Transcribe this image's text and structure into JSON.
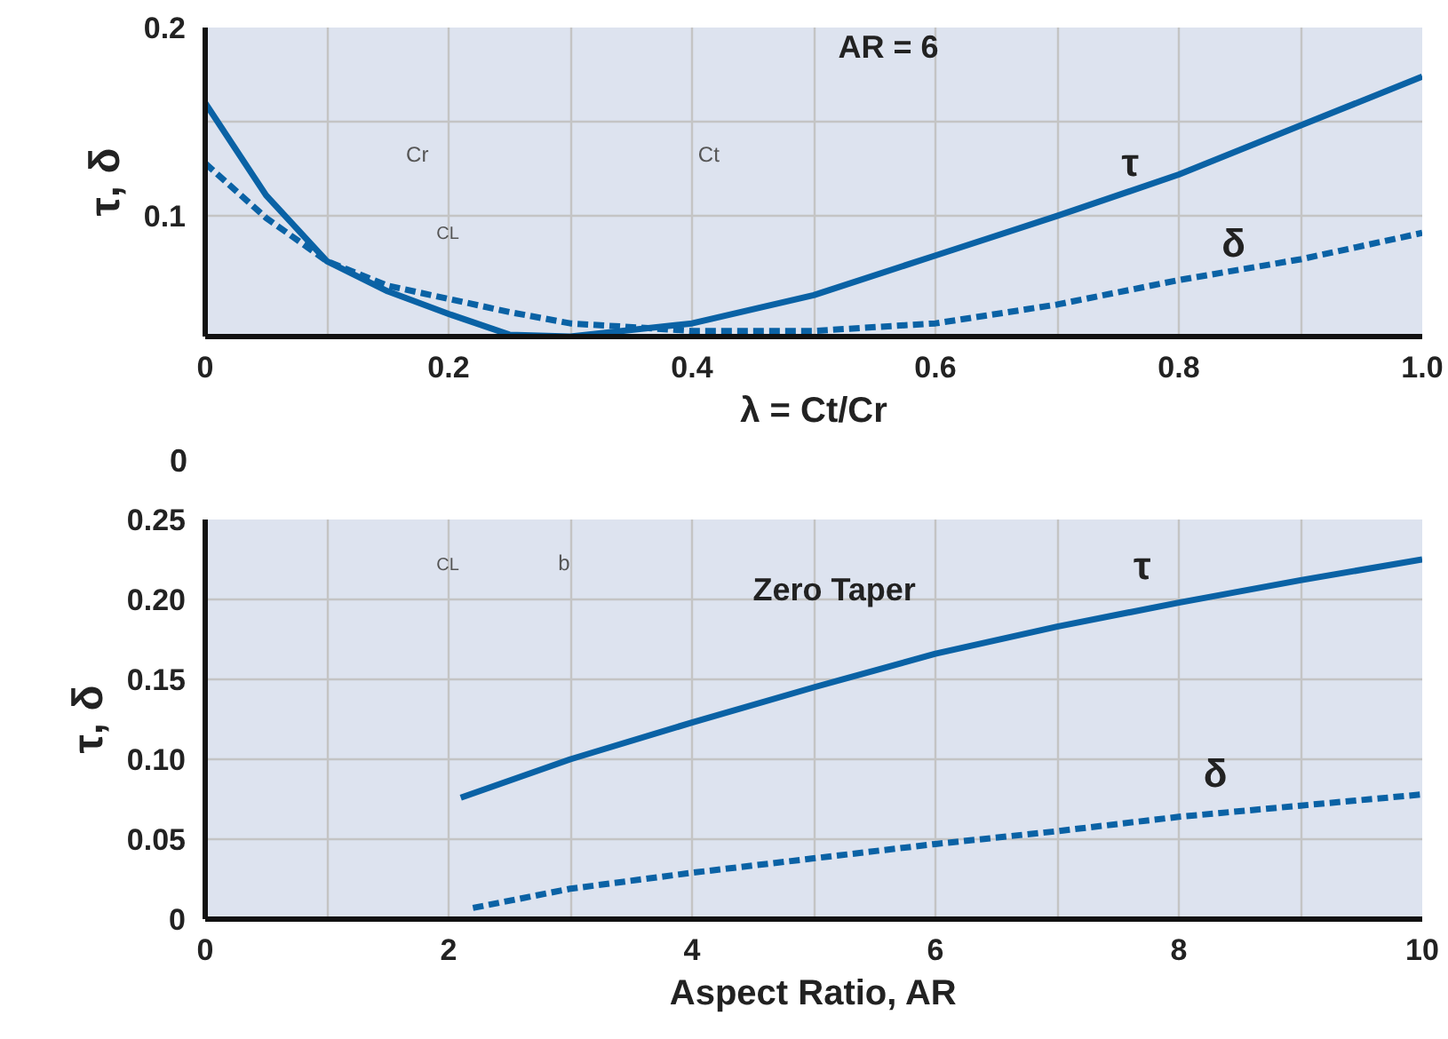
{
  "chart_data": [
    {
      "type": "line",
      "xlabel": "λ = Ct/Cr",
      "ylabel": "τ, δ",
      "xlim": [
        0,
        1.0
      ],
      "ylim": [
        0.036,
        0.2
      ],
      "xticks": [
        0,
        0.2,
        0.4,
        0.6,
        0.8,
        {
          "value": 1.0,
          "label": "1.0"
        },
        {
          "value": 0.1,
          "label": null
        },
        {
          "value": 0.3,
          "label": null
        },
        {
          "value": 0.5,
          "label": null
        },
        {
          "value": 0.7,
          "label": null
        },
        {
          "value": 0.9,
          "label": null
        }
      ],
      "yticks": [
        0.1,
        0.2,
        {
          "value": 0.15,
          "label": null
        }
      ],
      "grid": true,
      "marker": "none",
      "x": [
        0,
        0.05,
        0.1,
        0.15,
        0.2,
        0.25,
        0.3,
        0.4,
        0.5,
        0.6,
        0.7,
        0.8,
        0.9,
        1.0
      ],
      "series": [
        {
          "color": "#0a62a5",
          "line_style": "solid",
          "values": [
            0.16,
            0.111,
            0.076,
            0.06,
            0.048,
            0.037,
            0.036,
            0.043,
            0.058,
            0.079,
            0.1,
            0.122,
            0.148,
            0.174
          ]
        },
        {
          "color": "#0a62a5",
          "line_style": "dashed",
          "values": [
            0.128,
            0.099,
            0.076,
            0.063,
            0.056,
            0.049,
            0.043,
            0.039,
            0.039,
            0.043,
            0.053,
            0.066,
            0.077,
            0.091
          ]
        }
      ],
      "annotations": [
        "τ",
        "δ",
        "AR = 6",
        "0",
        "Cr",
        "Ct",
        "CL"
      ]
    },
    {
      "type": "line",
      "xlabel": "Aspect Ratio, AR",
      "ylabel": "τ, δ",
      "xlim": [
        0,
        10
      ],
      "ylim": [
        0,
        0.25
      ],
      "xticks": [
        0,
        2,
        4,
        6,
        8,
        10,
        {
          "value": 1,
          "label": null
        },
        {
          "value": 3,
          "label": null
        },
        {
          "value": 5,
          "label": null
        },
        {
          "value": 7,
          "label": null
        },
        {
          "value": 9,
          "label": null
        }
      ],
      "yticks": [
        0,
        {
          "value": 0.05,
          "label": "0.05"
        },
        {
          "value": 0.1,
          "label": "0.10"
        },
        {
          "value": 0.15,
          "label": "0.15"
        },
        {
          "value": 0.2,
          "label": "0.20"
        },
        0.25
      ],
      "grid": true,
      "marker": "none",
      "series": [
        {
          "color": "#0a62a5",
          "line_style": "solid",
          "x": [
            2.1,
            3,
            4,
            5,
            6,
            7,
            8,
            9,
            10
          ],
          "values": [
            0.076,
            0.1,
            0.123,
            0.145,
            0.166,
            0.183,
            0.198,
            0.212,
            0.225
          ]
        },
        {
          "color": "#0a62a5",
          "line_style": "dashed",
          "x": [
            2.2,
            3,
            4,
            5,
            6,
            7,
            8,
            9,
            10
          ],
          "values": [
            0.007,
            0.019,
            0.029,
            0.038,
            0.047,
            0.055,
            0.064,
            0.071,
            0.078
          ]
        }
      ],
      "annotations": [
        "τ",
        "δ",
        "Zero Taper",
        "CL",
        "b"
      ]
    }
  ]
}
